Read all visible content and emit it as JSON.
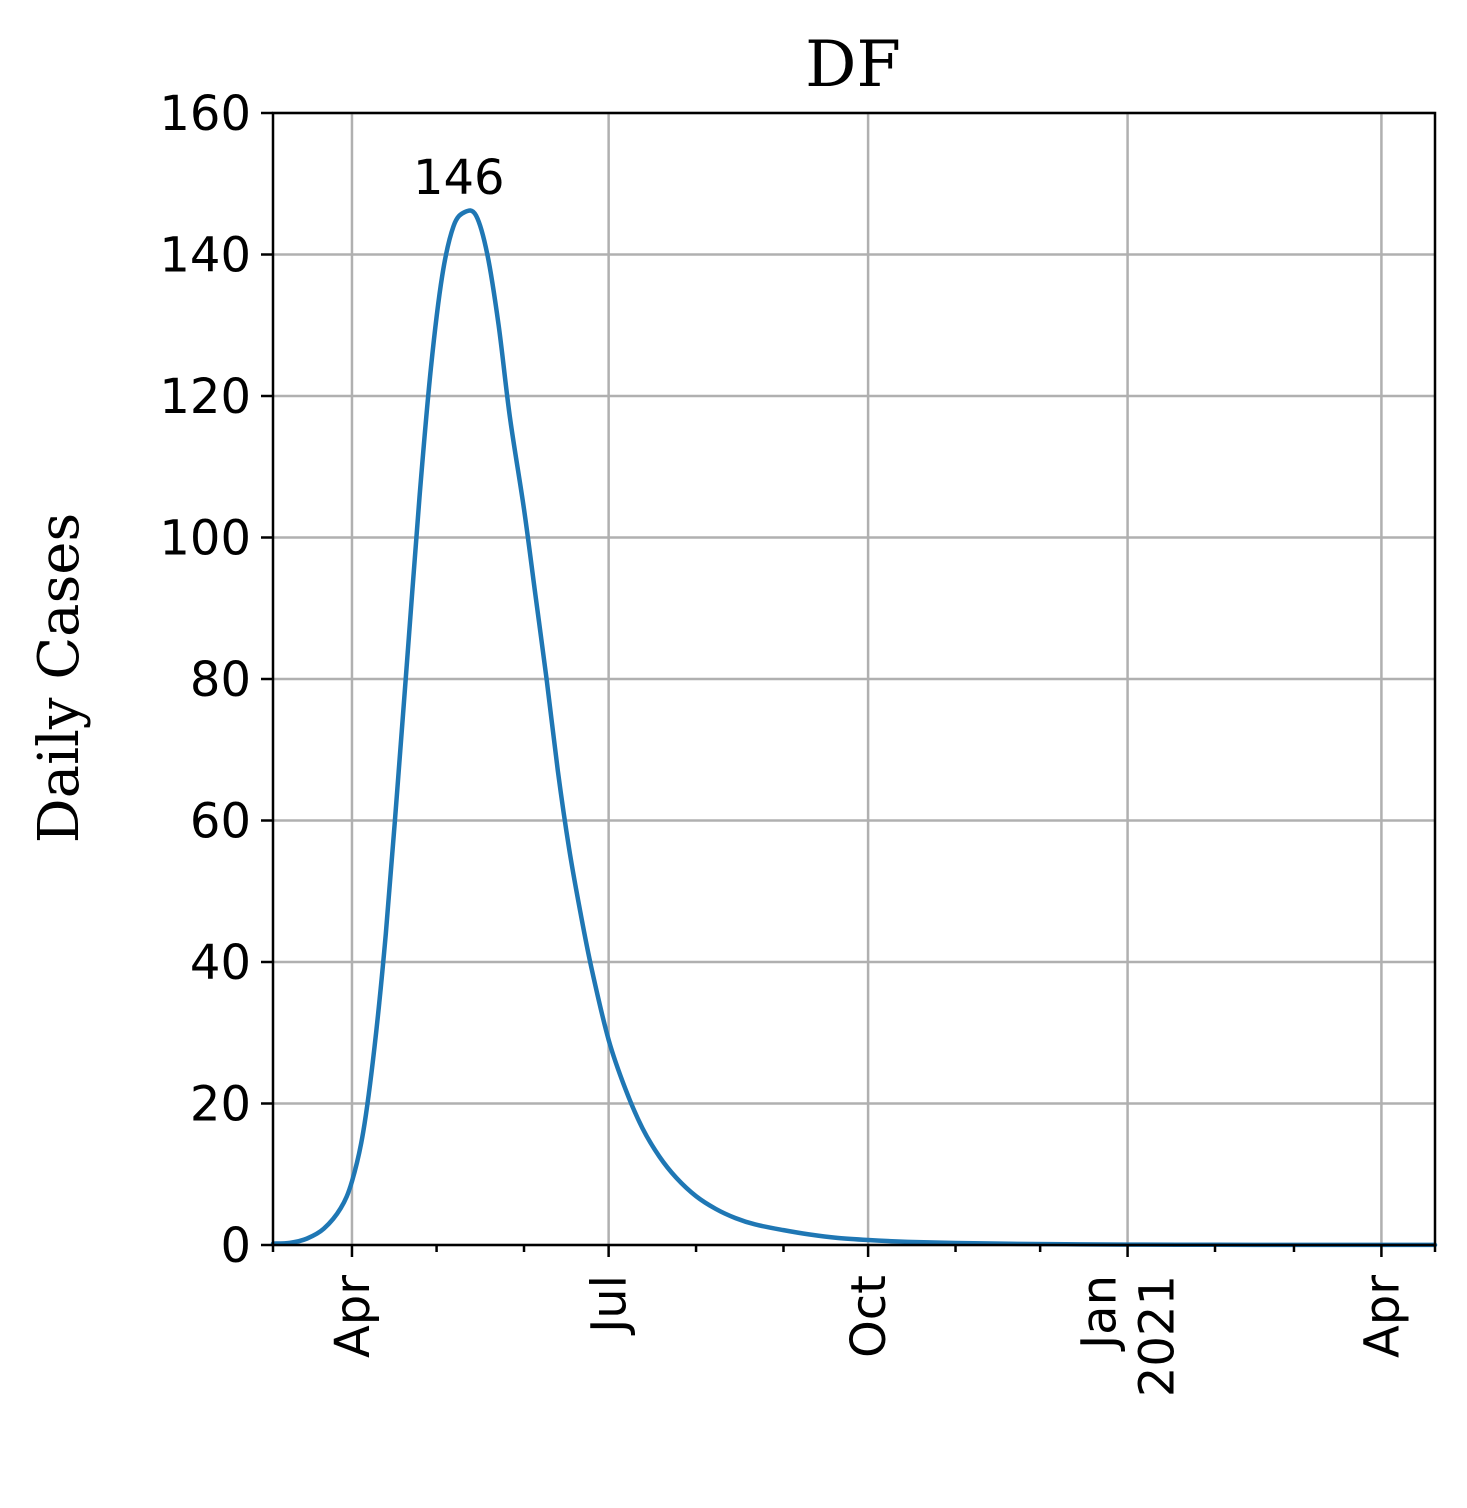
{
  "chart_data": {
    "type": "line",
    "title": "DF",
    "xlabel": "",
    "ylabel": "Daily Cases",
    "grid": true,
    "x_axis_type": "date",
    "xlim": [
      "2020-03-04",
      "2021-04-20"
    ],
    "ylim": [
      0,
      160
    ],
    "y_ticks": [
      0,
      20,
      40,
      60,
      80,
      100,
      120,
      140,
      160
    ],
    "y_tick_labels": [
      "0",
      "20",
      "40",
      "60",
      "80",
      "100",
      "120",
      "140",
      "160"
    ],
    "x_ticks": [
      {
        "date": "2020-04-01",
        "label": [
          "Apr"
        ]
      },
      {
        "date": "2020-07-01",
        "label": [
          "Jul"
        ]
      },
      {
        "date": "2020-10-01",
        "label": [
          "Oct"
        ]
      },
      {
        "date": "2021-01-01",
        "label": [
          "Jan",
          "2021"
        ]
      },
      {
        "date": "2021-04-01",
        "label": [
          "Apr"
        ]
      }
    ],
    "x_minor_ticks": [
      "2020-05-01",
      "2020-06-01",
      "2020-08-01",
      "2020-09-01",
      "2020-11-01",
      "2020-12-01",
      "2021-02-01",
      "2021-03-01"
    ],
    "series": [
      {
        "color": "#1f77b4",
        "x": [
          "2020-03-04",
          "2020-03-10",
          "2020-03-16",
          "2020-03-22",
          "2020-03-28",
          "2020-04-01",
          "2020-04-05",
          "2020-04-09",
          "2020-04-13",
          "2020-04-17",
          "2020-04-21",
          "2020-04-25",
          "2020-04-29",
          "2020-05-03",
          "2020-05-07",
          "2020-05-11",
          "2020-05-15",
          "2020-05-19",
          "2020-05-23",
          "2020-05-27",
          "2020-06-01",
          "2020-06-05",
          "2020-06-09",
          "2020-06-13",
          "2020-06-17",
          "2020-06-21",
          "2020-06-25",
          "2020-07-01",
          "2020-07-07",
          "2020-07-13",
          "2020-07-19",
          "2020-07-25",
          "2020-08-01",
          "2020-08-08",
          "2020-08-15",
          "2020-08-22",
          "2020-09-01",
          "2020-09-10",
          "2020-09-20",
          "2020-10-01",
          "2020-10-15",
          "2020-11-01",
          "2020-11-20",
          "2020-12-10",
          "2021-01-01",
          "2021-02-01",
          "2021-03-01",
          "2021-04-01",
          "2021-04-20"
        ],
        "y": [
          0.2,
          0.3,
          0.9,
          2.3,
          5.2,
          9,
          16,
          28,
          44,
          64,
          85,
          106,
          124,
          137,
          144,
          146,
          145.5,
          140,
          130,
          117,
          104,
          92,
          80,
          67,
          56,
          47,
          39,
          29,
          22,
          16.5,
          12.5,
          9.5,
          6.9,
          5.1,
          3.8,
          2.9,
          2.1,
          1.5,
          1.0,
          0.7,
          0.45,
          0.28,
          0.17,
          0.1,
          0.06,
          0.03,
          0.02,
          0.01,
          0.01
        ]
      }
    ],
    "annotations": [
      {
        "text": "146",
        "x": "2020-05-11",
        "y": 146
      }
    ]
  }
}
